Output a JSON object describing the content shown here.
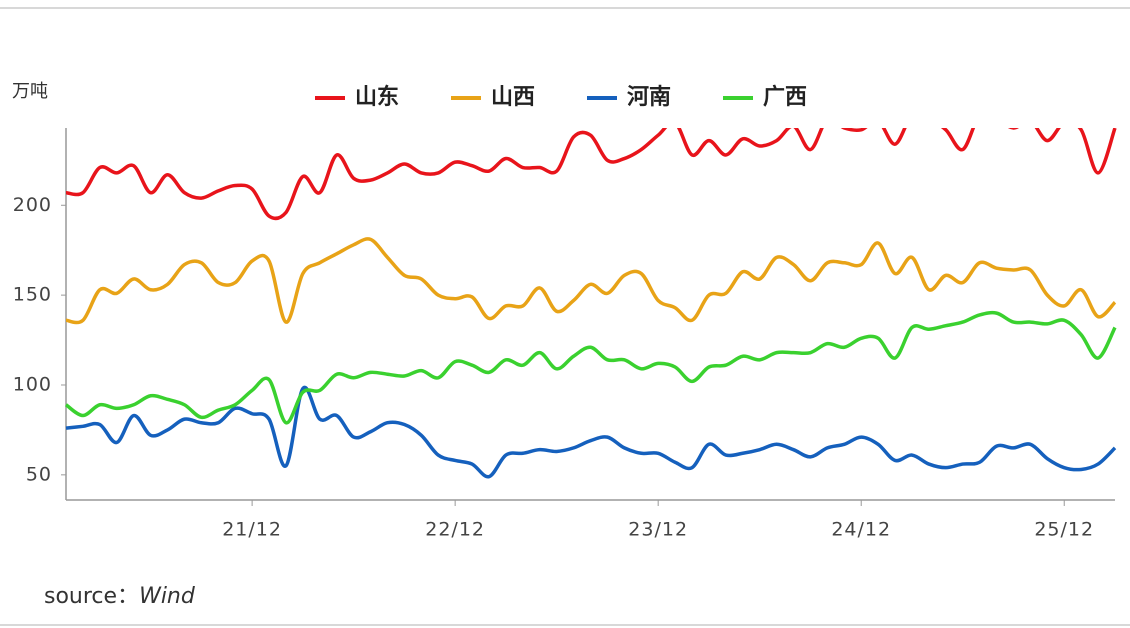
{
  "chart_data": {
    "type": "line",
    "y_label": "万吨",
    "categories": [
      null,
      null,
      null,
      null,
      null,
      null,
      null,
      null,
      null,
      null,
      null,
      "21/12",
      null,
      null,
      null,
      null,
      null,
      null,
      null,
      null,
      null,
      null,
      null,
      "22/12",
      null,
      null,
      null,
      null,
      null,
      null,
      null,
      null,
      null,
      null,
      null,
      "23/12",
      null,
      null,
      null,
      null,
      null,
      null,
      null,
      null,
      null,
      null,
      null,
      "24/12",
      null,
      null,
      null,
      null,
      null,
      null,
      null,
      null,
      null,
      null,
      null,
      "25/12",
      null,
      null,
      null
    ],
    "ylim": [
      36,
      243
    ],
    "yticks": [
      50,
      100,
      150,
      200
    ],
    "grid": false,
    "legend": "top",
    "series": [
      {
        "name": "山东",
        "color": "#e8141b",
        "values": [
          207,
          207,
          221,
          218,
          222,
          207,
          217,
          207,
          204,
          208,
          211,
          209,
          194,
          196,
          216,
          207,
          228,
          215,
          214,
          218,
          223,
          218,
          218,
          224,
          222,
          219,
          226,
          221,
          221,
          219,
          238,
          239,
          225,
          226,
          231,
          239,
          246,
          228,
          236,
          228,
          237,
          233,
          236,
          244,
          231,
          248,
          243,
          242,
          247,
          234,
          250,
          248,
          242,
          231,
          250,
          248,
          243,
          247,
          236,
          246,
          242,
          218,
          243
        ]
      },
      {
        "name": "山西",
        "color": "#e8a317",
        "values": [
          136,
          136,
          153,
          151,
          159,
          153,
          156,
          167,
          168,
          157,
          157,
          169,
          169,
          135,
          162,
          168,
          173,
          178,
          181,
          171,
          161,
          159,
          150,
          148,
          149,
          137,
          144,
          144,
          154,
          141,
          147,
          156,
          151,
          161,
          162,
          147,
          143,
          136,
          150,
          151,
          163,
          159,
          171,
          167,
          158,
          168,
          168,
          167,
          179,
          162,
          171,
          153,
          161,
          157,
          168,
          165,
          164,
          164,
          150,
          144,
          153,
          138,
          146
        ]
      },
      {
        "name": "河南",
        "color": "#1560bd",
        "values": [
          76,
          77,
          78,
          68,
          83,
          72,
          75,
          81,
          79,
          79,
          87,
          84,
          81,
          55,
          98,
          81,
          83,
          71,
          74,
          79,
          78,
          72,
          61,
          58,
          56,
          49,
          61,
          62,
          64,
          63,
          65,
          69,
          71,
          65,
          62,
          62,
          57,
          54,
          67,
          61,
          62,
          64,
          67,
          64,
          60,
          65,
          67,
          71,
          67,
          58,
          61,
          56,
          54,
          56,
          57,
          66,
          65,
          67,
          59,
          54,
          53,
          56,
          65
        ]
      },
      {
        "name": "广西",
        "color": "#3ad12f",
        "values": [
          89,
          83,
          89,
          87,
          89,
          94,
          92,
          89,
          82,
          86,
          89,
          97,
          103,
          79,
          96,
          97,
          106,
          104,
          107,
          106,
          105,
          108,
          104,
          113,
          111,
          107,
          114,
          111,
          118,
          109,
          116,
          121,
          114,
          114,
          109,
          112,
          110,
          102,
          110,
          111,
          116,
          114,
          118,
          118,
          118,
          123,
          121,
          126,
          126,
          115,
          132,
          131,
          133,
          135,
          139,
          140,
          135,
          135,
          134,
          136,
          128,
          115,
          132
        ]
      }
    ]
  },
  "source": {
    "label": "source：",
    "name": "Wind"
  }
}
